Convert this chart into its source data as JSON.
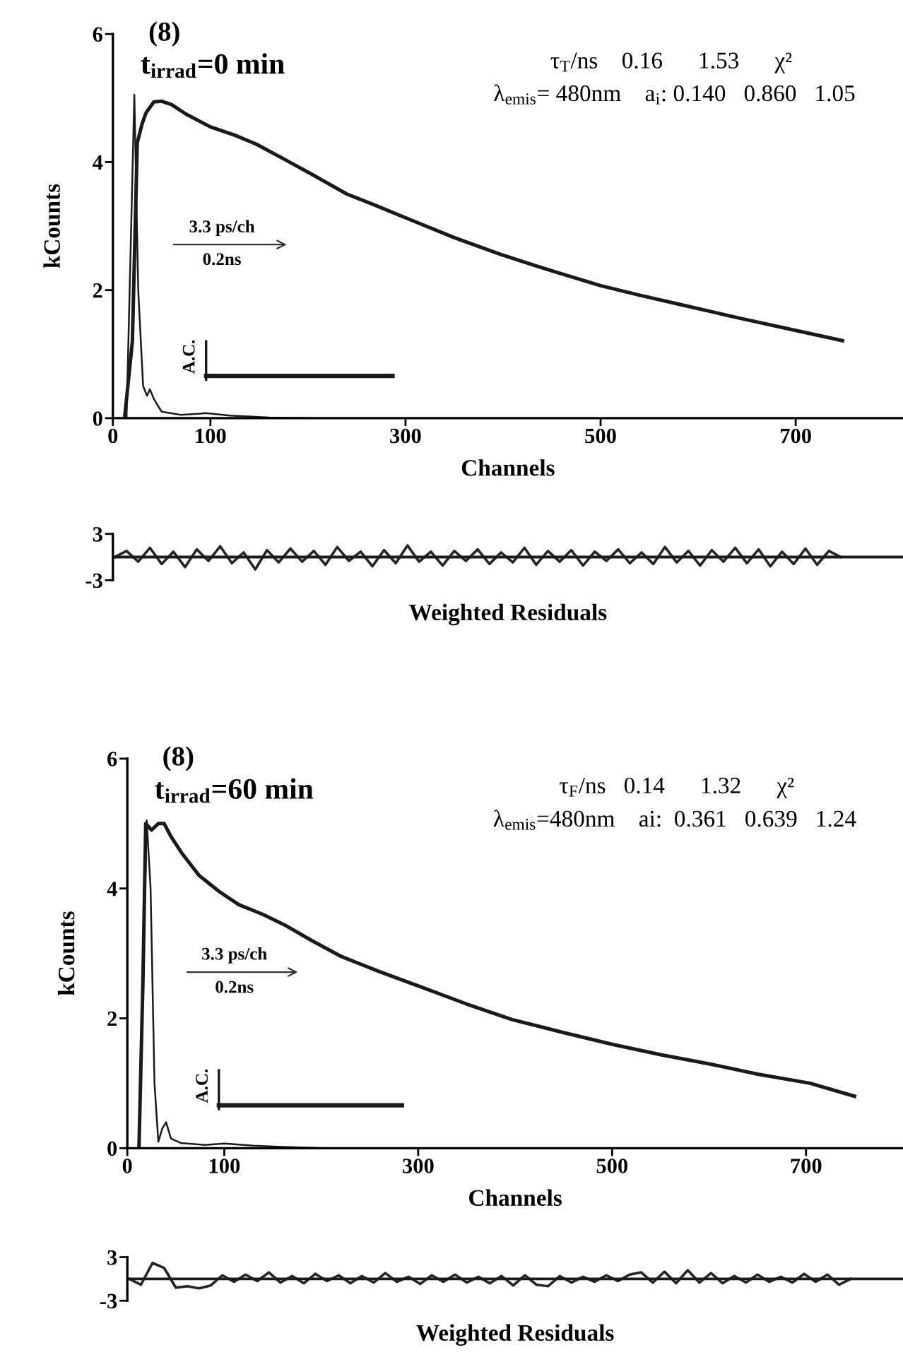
{
  "chart_data": [
    {
      "type": "line",
      "xlabel": "Channels",
      "ylabel": "kCounts",
      "xlim": [
        0,
        810
      ],
      "ylim": [
        0,
        6
      ],
      "xticks": [
        0,
        100,
        300,
        500,
        700
      ],
      "yticks": [
        0,
        2,
        4,
        6
      ],
      "annotations": [
        "(8)",
        "t$_{irrad}$=0 min",
        "τ$_{T}$/ns    0.16      1.53      χ²",
        "λ$_{emis}$= 480nm    a$_{i}$: 0.140   0.860   1.05",
        "3.3 ps/ch",
        "0.2ns",
        "A.C."
      ],
      "series": [
        {
          "color": "#1a1a1a",
          "x": [
            0,
            14,
            18,
            22,
            26,
            31,
            35,
            38,
            42,
            50,
            70,
            90,
            95,
            120,
            160,
            200
          ],
          "values": [
            0,
            0,
            2.5,
            5.05,
            2.0,
            0.5,
            0.35,
            0.45,
            0.3,
            0.1,
            0.05,
            0.07,
            0.08,
            0.04,
            0.01,
            0
          ]
        },
        {
          "color": "#1a1a1a",
          "x": [
            12,
            20,
            25,
            30,
            34,
            42,
            50,
            60,
            75,
            100,
            125,
            147,
            175,
            205,
            240,
            270,
            300,
            350,
            397,
            450,
            500,
            540,
            583,
            640,
            700,
            748
          ],
          "values": [
            0,
            1.2,
            4.3,
            4.6,
            4.77,
            4.94,
            4.95,
            4.9,
            4.75,
            4.55,
            4.42,
            4.28,
            4.05,
            3.8,
            3.5,
            3.32,
            3.13,
            2.82,
            2.56,
            2.3,
            2.07,
            1.92,
            1.77,
            1.57,
            1.37,
            1.21
          ]
        }
      ]
    },
    {
      "type": "line",
      "xlabel": "Weighted Residuals",
      "xlim": [
        0,
        810
      ],
      "ylim": [
        -3,
        3
      ],
      "yticks": [
        -3,
        3
      ],
      "tick_labels": "y",
      "ref_lines": [
        {
          "axis": "y",
          "value": 0
        }
      ],
      "series": [
        {
          "color": "#2b2420",
          "x": [
            2,
            14,
            26,
            38,
            50,
            62,
            74,
            86,
            98,
            110,
            122,
            134,
            146,
            158,
            170,
            182,
            194,
            206,
            218,
            230,
            242,
            254,
            266,
            278,
            290,
            302,
            314,
            326,
            338,
            350,
            362,
            374,
            386,
            398,
            410,
            422,
            434,
            446,
            458,
            470,
            482,
            494,
            506,
            518,
            530,
            542,
            554,
            566,
            578,
            590,
            602,
            614,
            626,
            638,
            650,
            662,
            674,
            686,
            698,
            710,
            722,
            734,
            746
          ],
          "values": [
            0,
            0.8,
            -0.6,
            1.2,
            -0.9,
            0.7,
            -1.3,
            1.0,
            -0.5,
            1.4,
            -0.8,
            0.6,
            -1.6,
            0.9,
            -0.7,
            1.1,
            -0.6,
            0.8,
            -1.0,
            1.3,
            -0.5,
            0.7,
            -1.2,
            0.9,
            -0.8,
            1.5,
            -0.6,
            0.7,
            -1.1,
            0.8,
            -0.5,
            1.0,
            -0.9,
            0.6,
            -0.7,
            1.2,
            -1.0,
            0.8,
            -0.6,
            0.9,
            -1.1,
            0.7,
            -0.5,
            1.0,
            -0.8,
            0.6,
            -0.9,
            1.3,
            -0.7,
            0.8,
            -1.1,
            0.9,
            -0.6,
            1.2,
            -0.8,
            1.0,
            -1.2,
            0.7,
            -0.9,
            1.1,
            -1.0,
            0.8,
            0
          ]
        }
      ]
    },
    {
      "type": "line",
      "xlabel": "Channels",
      "ylabel": "kCounts",
      "xlim": [
        0,
        800
      ],
      "ylim": [
        0,
        6
      ],
      "xticks": [
        0,
        100,
        300,
        500,
        700
      ],
      "yticks": [
        0,
        2,
        4,
        6
      ],
      "annotations": [
        "(8)",
        "t$_{irrad}$=60 min",
        "τ$_{F}$/ns   0.14      1.32      χ²",
        "λ$_{emis}$=480nm    ai:  0.361   0.639   1.24",
        "3.3 ps/ch",
        "0.2ns",
        "A.C."
      ],
      "series": [
        {
          "color": "#1a1a1a",
          "x": [
            0,
            12,
            16,
            20,
            24,
            28,
            32,
            36,
            40,
            45,
            55,
            80,
            100,
            130,
            160,
            200
          ],
          "values": [
            0,
            0,
            2.5,
            5.05,
            4.0,
            1.0,
            0.1,
            0.3,
            0.4,
            0.15,
            0.08,
            0.05,
            0.07,
            0.04,
            0.02,
            0
          ]
        },
        {
          "color": "#1a1a1a",
          "x": [
            12,
            16,
            19,
            25,
            32,
            38,
            45,
            56,
            74,
            95,
            115,
            140,
            162,
            190,
            221,
            260,
            300,
            350,
            397,
            450,
            500,
            550,
            603,
            650,
            704,
            750
          ],
          "values": [
            0,
            2.5,
            5.0,
            4.9,
            5.0,
            5.0,
            4.8,
            4.55,
            4.2,
            3.95,
            3.75,
            3.6,
            3.44,
            3.2,
            2.95,
            2.72,
            2.5,
            2.22,
            1.98,
            1.78,
            1.6,
            1.44,
            1.29,
            1.14,
            1.0,
            0.8
          ]
        }
      ]
    },
    {
      "type": "line",
      "xlabel": "Weighted Residuals",
      "xlim": [
        0,
        800
      ],
      "ylim": [
        -3,
        3
      ],
      "yticks": [
        -3,
        3
      ],
      "tick_labels": "y",
      "ref_lines": [
        {
          "axis": "y",
          "value": 0
        }
      ],
      "series": [
        {
          "color": "#2b2420",
          "x": [
            2,
            14,
            26,
            38,
            50,
            62,
            74,
            86,
            98,
            110,
            122,
            134,
            146,
            158,
            170,
            182,
            194,
            206,
            218,
            230,
            242,
            254,
            266,
            278,
            290,
            302,
            314,
            326,
            338,
            350,
            362,
            374,
            386,
            398,
            410,
            422,
            434,
            446,
            458,
            470,
            482,
            494,
            506,
            518,
            530,
            542,
            554,
            566,
            578,
            590,
            602,
            614,
            626,
            638,
            650,
            662,
            674,
            686,
            698,
            710,
            722,
            734,
            746
          ],
          "values": [
            0,
            -0.8,
            2.2,
            1.5,
            -1.2,
            -1.0,
            -1.3,
            -0.9,
            0.5,
            -0.4,
            0.6,
            -0.3,
            0.9,
            -0.5,
            0.4,
            -0.6,
            0.7,
            -0.3,
            0.5,
            -0.6,
            0.4,
            -0.5,
            0.8,
            -0.4,
            0.3,
            -0.7,
            0.5,
            -0.4,
            0.6,
            -0.5,
            0.3,
            -0.6,
            0.4,
            -0.9,
            0.5,
            -0.8,
            -1.0,
            0.4,
            -0.5,
            0.3,
            -0.4,
            0.5,
            -0.3,
            0.6,
            0.9,
            -0.5,
            1.0,
            -0.6,
            1.2,
            -0.5,
            0.8,
            -0.6,
            0.4,
            -0.5,
            0.6,
            -0.4,
            0.3,
            -0.5,
            0.7,
            -0.4,
            0.6,
            -0.8,
            0
          ]
        }
      ]
    }
  ]
}
